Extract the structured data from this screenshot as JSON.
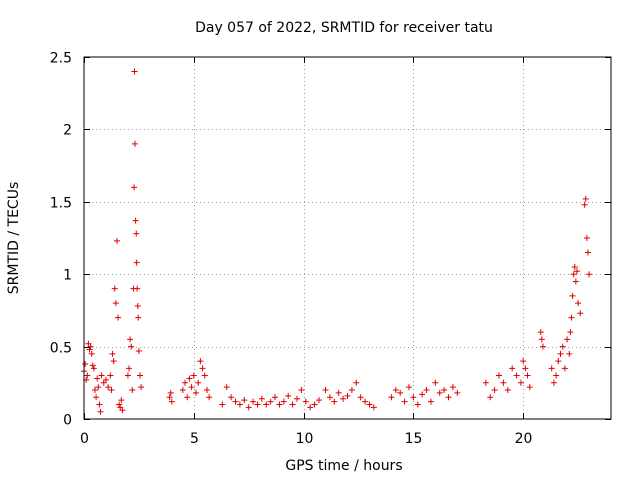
{
  "chart_data": {
    "type": "scatter",
    "title": "Day 057 of 2022, SRMTID for receiver tatu",
    "xlabel": "GPS time / hours",
    "ylabel": "SRMTID / TECUs",
    "xlim": [
      0,
      24
    ],
    "ylim": [
      0,
      2.5
    ],
    "xticks": [
      0,
      5,
      10,
      15,
      20
    ],
    "xtick_labels": [
      "0",
      "5",
      "10",
      "15",
      "20"
    ],
    "yticks": [
      0,
      0.5,
      1,
      1.5,
      2,
      2.5
    ],
    "ytick_labels": [
      "0",
      "0.5",
      "1",
      "1.5",
      "2",
      "2.5"
    ],
    "grid": true,
    "marker": "+",
    "color": "#e00000",
    "series": [
      {
        "name": "SRMTID",
        "points": [
          [
            0.0,
            0.33
          ],
          [
            0.05,
            0.38
          ],
          [
            0.1,
            0.27
          ],
          [
            0.15,
            0.3
          ],
          [
            0.2,
            0.52
          ],
          [
            0.25,
            0.48
          ],
          [
            0.3,
            0.5
          ],
          [
            0.35,
            0.45
          ],
          [
            0.4,
            0.37
          ],
          [
            0.45,
            0.35
          ],
          [
            0.5,
            0.2
          ],
          [
            0.55,
            0.15
          ],
          [
            0.6,
            0.28
          ],
          [
            0.65,
            0.22
          ],
          [
            0.7,
            0.1
          ],
          [
            0.75,
            0.05
          ],
          [
            0.8,
            0.3
          ],
          [
            0.9,
            0.25
          ],
          [
            1.0,
            0.27
          ],
          [
            1.1,
            0.22
          ],
          [
            1.2,
            0.3
          ],
          [
            1.25,
            0.2
          ],
          [
            1.3,
            0.45
          ],
          [
            1.35,
            0.4
          ],
          [
            1.4,
            0.9
          ],
          [
            1.45,
            0.8
          ],
          [
            1.5,
            1.23
          ],
          [
            1.55,
            0.7
          ],
          [
            1.6,
            0.1
          ],
          [
            1.65,
            0.08
          ],
          [
            1.7,
            0.13
          ],
          [
            1.75,
            0.06
          ],
          [
            2.0,
            0.3
          ],
          [
            2.05,
            0.35
          ],
          [
            2.1,
            0.55
          ],
          [
            2.15,
            0.5
          ],
          [
            2.2,
            0.2
          ],
          [
            2.25,
            0.9
          ],
          [
            2.28,
            1.6
          ],
          [
            2.3,
            2.4
          ],
          [
            2.32,
            1.9
          ],
          [
            2.35,
            1.37
          ],
          [
            2.38,
            1.28
          ],
          [
            2.4,
            1.08
          ],
          [
            2.42,
            0.9
          ],
          [
            2.45,
            0.78
          ],
          [
            2.47,
            0.7
          ],
          [
            2.5,
            0.47
          ],
          [
            2.55,
            0.3
          ],
          [
            2.6,
            0.22
          ],
          [
            3.9,
            0.15
          ],
          [
            3.95,
            0.18
          ],
          [
            4.0,
            0.12
          ],
          [
            4.5,
            0.2
          ],
          [
            4.6,
            0.25
          ],
          [
            4.7,
            0.15
          ],
          [
            4.8,
            0.28
          ],
          [
            4.9,
            0.22
          ],
          [
            5.0,
            0.3
          ],
          [
            5.1,
            0.18
          ],
          [
            5.2,
            0.25
          ],
          [
            5.3,
            0.4
          ],
          [
            5.4,
            0.35
          ],
          [
            5.5,
            0.3
          ],
          [
            5.6,
            0.2
          ],
          [
            5.7,
            0.15
          ],
          [
            6.3,
            0.1
          ],
          [
            6.5,
            0.22
          ],
          [
            6.7,
            0.15
          ],
          [
            6.9,
            0.12
          ],
          [
            7.1,
            0.1
          ],
          [
            7.3,
            0.13
          ],
          [
            7.5,
            0.08
          ],
          [
            7.7,
            0.12
          ],
          [
            7.9,
            0.1
          ],
          [
            8.1,
            0.14
          ],
          [
            8.3,
            0.1
          ],
          [
            8.5,
            0.12
          ],
          [
            8.7,
            0.15
          ],
          [
            8.9,
            0.1
          ],
          [
            9.1,
            0.12
          ],
          [
            9.3,
            0.16
          ],
          [
            9.5,
            0.1
          ],
          [
            9.7,
            0.14
          ],
          [
            9.9,
            0.2
          ],
          [
            10.1,
            0.12
          ],
          [
            10.3,
            0.08
          ],
          [
            10.5,
            0.1
          ],
          [
            10.7,
            0.13
          ],
          [
            11.0,
            0.2
          ],
          [
            11.2,
            0.15
          ],
          [
            11.4,
            0.12
          ],
          [
            11.6,
            0.18
          ],
          [
            11.8,
            0.14
          ],
          [
            12.0,
            0.16
          ],
          [
            12.2,
            0.2
          ],
          [
            12.4,
            0.25
          ],
          [
            12.6,
            0.15
          ],
          [
            12.8,
            0.12
          ],
          [
            13.0,
            0.1
          ],
          [
            13.2,
            0.08
          ],
          [
            14.0,
            0.15
          ],
          [
            14.2,
            0.2
          ],
          [
            14.4,
            0.18
          ],
          [
            14.6,
            0.12
          ],
          [
            14.8,
            0.22
          ],
          [
            15.0,
            0.15
          ],
          [
            15.2,
            0.1
          ],
          [
            15.4,
            0.17
          ],
          [
            15.6,
            0.2
          ],
          [
            15.8,
            0.12
          ],
          [
            16.0,
            0.25
          ],
          [
            16.2,
            0.18
          ],
          [
            16.4,
            0.2
          ],
          [
            16.6,
            0.15
          ],
          [
            16.8,
            0.22
          ],
          [
            17.0,
            0.18
          ],
          [
            18.3,
            0.25
          ],
          [
            18.5,
            0.15
          ],
          [
            18.7,
            0.2
          ],
          [
            18.9,
            0.3
          ],
          [
            19.1,
            0.25
          ],
          [
            19.3,
            0.2
          ],
          [
            19.5,
            0.35
          ],
          [
            19.7,
            0.3
          ],
          [
            19.9,
            0.25
          ],
          [
            20.0,
            0.4
          ],
          [
            20.1,
            0.35
          ],
          [
            20.2,
            0.3
          ],
          [
            20.3,
            0.22
          ],
          [
            20.8,
            0.6
          ],
          [
            20.85,
            0.55
          ],
          [
            20.9,
            0.5
          ],
          [
            21.3,
            0.35
          ],
          [
            21.4,
            0.25
          ],
          [
            21.5,
            0.3
          ],
          [
            21.6,
            0.4
          ],
          [
            21.7,
            0.45
          ],
          [
            21.8,
            0.5
          ],
          [
            21.9,
            0.35
          ],
          [
            22.0,
            0.55
          ],
          [
            22.1,
            0.45
          ],
          [
            22.15,
            0.6
          ],
          [
            22.2,
            0.7
          ],
          [
            22.25,
            0.85
          ],
          [
            22.3,
            1.0
          ],
          [
            22.35,
            1.05
          ],
          [
            22.4,
            0.95
          ],
          [
            22.45,
            1.02
          ],
          [
            22.5,
            0.8
          ],
          [
            22.6,
            0.73
          ],
          [
            22.8,
            1.48
          ],
          [
            22.85,
            1.52
          ],
          [
            22.9,
            1.25
          ],
          [
            22.95,
            1.15
          ],
          [
            23.0,
            1.0
          ]
        ]
      }
    ]
  }
}
